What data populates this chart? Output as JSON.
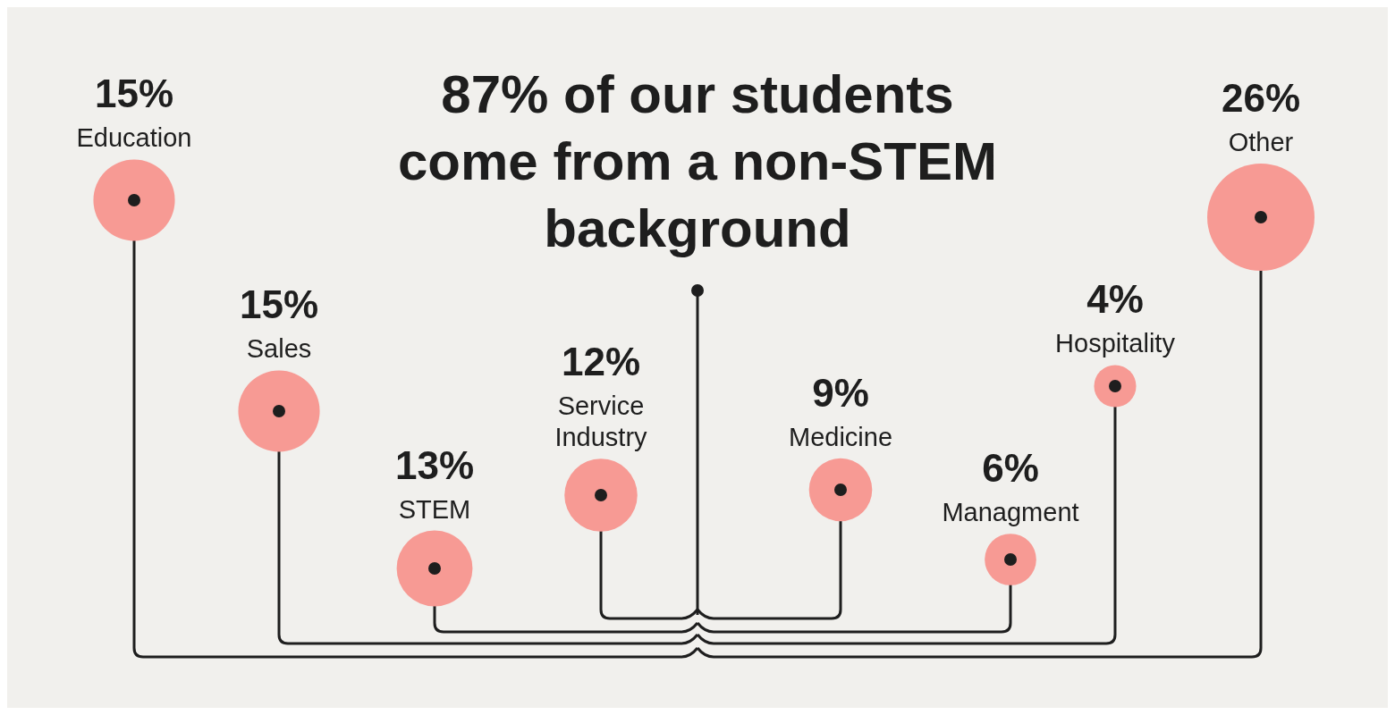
{
  "chart_data": {
    "type": "other",
    "title": "87% of our students come from a non-STEM background",
    "categories": [
      "Education",
      "Sales",
      "STEM",
      "Service Industry",
      "Medicine",
      "Managment",
      "Hospitality",
      "Other"
    ],
    "values": [
      15,
      15,
      13,
      12,
      9,
      6,
      4,
      26
    ],
    "value_labels": [
      "15%",
      "15%",
      "13%",
      "12%",
      "9%",
      "6%",
      "4%",
      "26%"
    ],
    "color": "#f79a94"
  }
}
